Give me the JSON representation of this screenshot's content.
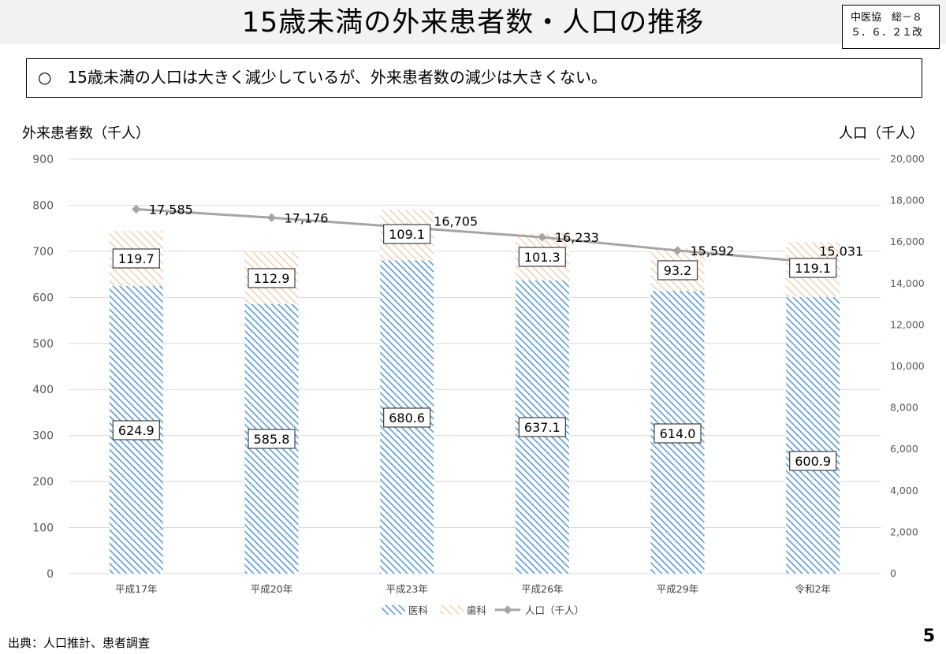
{
  "header": {
    "title": "15歳未満の外来患者数・人口の推移",
    "doc_ref_line1": "中医協　総－８",
    "doc_ref_line2": "５．６．２１改"
  },
  "summary": "○　15歳未満の人口は大きく減少しているが、外来患者数の減少は大きくない。",
  "footer": {
    "source": "出典：人口推計、患者調査",
    "page_number": "5"
  },
  "colors": {
    "medical": "#5b9bd5",
    "dental": "#ed9d5f",
    "population": "#a5a5a5"
  },
  "chart_data": {
    "type": "bar",
    "stacked": true,
    "categories": [
      "平成17年",
      "平成20年",
      "平成23年",
      "平成26年",
      "平成29年",
      "令和2年"
    ],
    "y_left": {
      "label": "外来患者数（千人）",
      "ylim": [
        0,
        900
      ],
      "ticks": [
        "0",
        "100",
        "200",
        "300",
        "400",
        "500",
        "600",
        "700",
        "800",
        "900"
      ]
    },
    "y_right": {
      "label": "人口（千人）",
      "ylim": [
        0,
        20000
      ],
      "ticks": [
        "0",
        "2,000",
        "4,000",
        "6,000",
        "8,000",
        "10,000",
        "12,000",
        "14,000",
        "16,000",
        "18,000",
        "20,000"
      ]
    },
    "grid": true,
    "legend_position": "bottom",
    "series": [
      {
        "name": "医科",
        "type": "bar",
        "axis": "left",
        "values": [
          624.9,
          585.8,
          680.6,
          637.1,
          614.0,
          600.9
        ],
        "labels": [
          "624.9",
          "585.8",
          "680.6",
          "637.1",
          "614.0",
          "600.9"
        ]
      },
      {
        "name": "歯科",
        "type": "bar",
        "axis": "left",
        "values": [
          119.7,
          112.9,
          109.1,
          101.3,
          93.2,
          119.1
        ],
        "labels": [
          "119.7",
          "112.9",
          "109.1",
          "101.3",
          "93.2",
          "119.1"
        ]
      },
      {
        "name": "人口（千人）",
        "type": "line",
        "axis": "right",
        "values": [
          17585,
          17176,
          16705,
          16233,
          15592,
          15031
        ],
        "labels": [
          "17,585",
          "17,176",
          "16,705",
          "16,233",
          "15,592",
          "15,031"
        ]
      }
    ]
  }
}
